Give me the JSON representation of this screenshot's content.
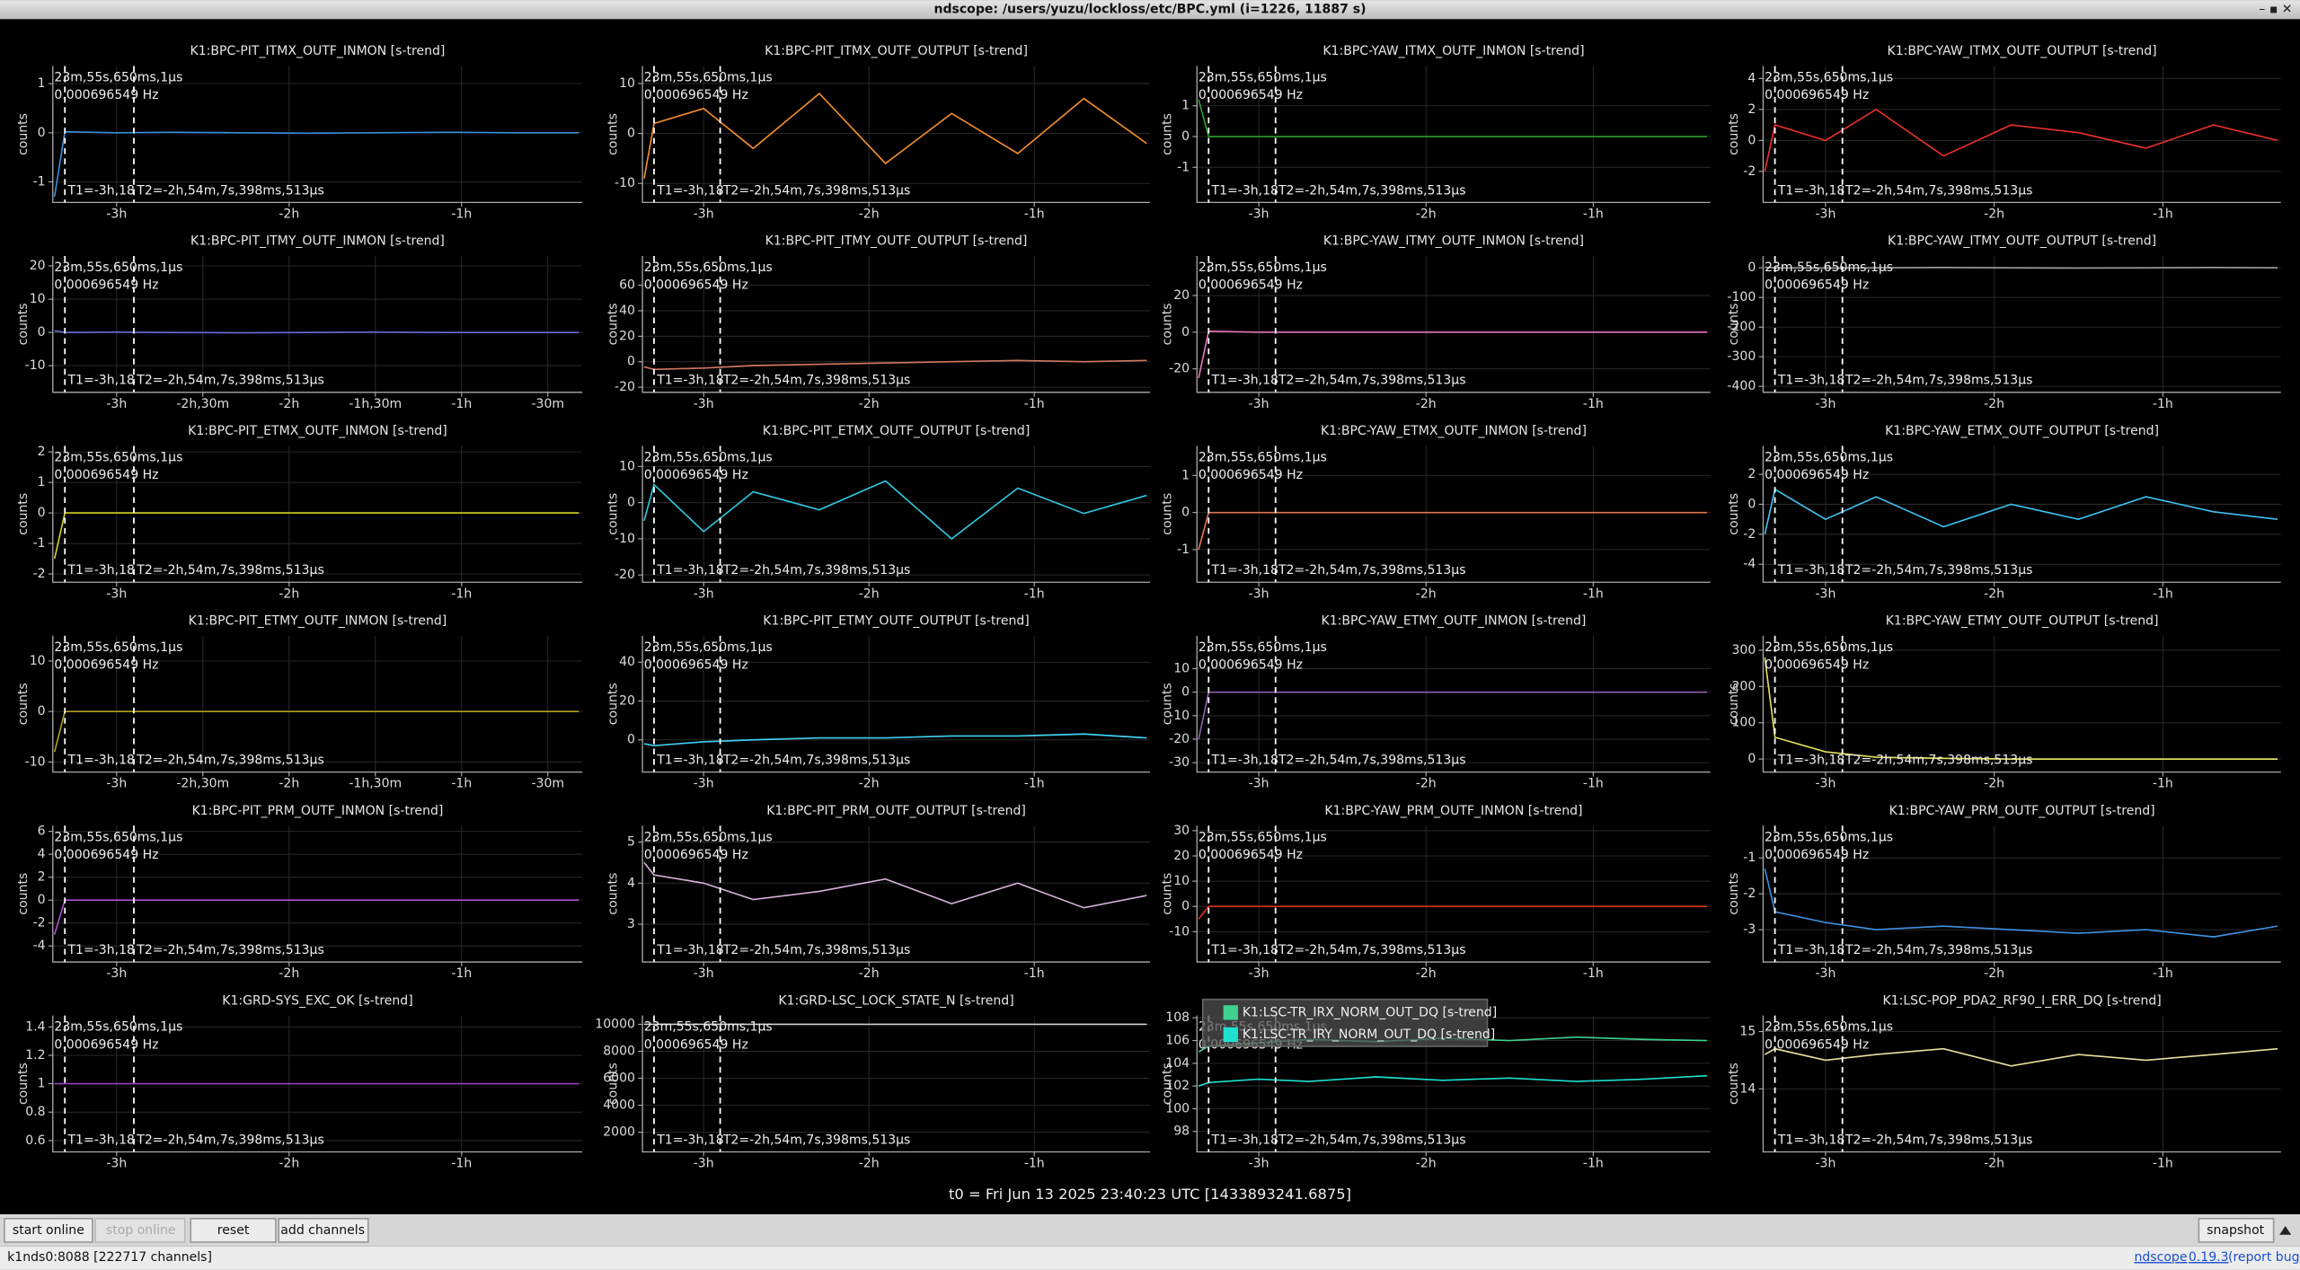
{
  "window": {
    "title": "ndscope: /users/yuzu/lockloss/etc/BPC.yml (i=1226, 11887 s)"
  },
  "xlim": [
    -3.37,
    -0.3
  ],
  "xticks": [
    {
      "value": -3,
      "label": "-3h"
    },
    {
      "value": -2,
      "label": "-2h"
    },
    {
      "value": -1,
      "label": "-1h"
    }
  ],
  "ylabel": "counts",
  "cursors": {
    "t1": -3.3,
    "t2": -2.9,
    "dt_label": "23m,55s,650ms,1µs",
    "freq_label": "0.000696549 Hz",
    "t1_label": "T1=-3h,18",
    "t2_label": "T2=-2h,54m,7s,398ms,513µs"
  },
  "plots": [
    {
      "title": "K1:BPC-PIT_ITMX_OUTF_INMON [s-trend]",
      "ylim": [
        -1.42,
        1.36
      ],
      "yticks": [
        -1,
        0,
        1
      ],
      "x": [
        -3.36,
        -3.3,
        -3.0,
        -2.7,
        -2.3,
        -1.9,
        -1.5,
        -1.1,
        -0.7,
        -0.32
      ],
      "series": [
        {
          "color": "#3c8fd8",
          "values": [
            -1.3,
            0.02,
            0,
            0.01,
            0,
            -0.01,
            0,
            0.01,
            0,
            0
          ]
        }
      ]
    },
    {
      "title": "K1:BPC-PIT_ITMX_OUTF_OUTPUT [s-trend]",
      "ylim": [
        -13.8,
        13.5
      ],
      "yticks": [
        -10,
        0,
        10
      ],
      "x": [
        -3.36,
        -3.3,
        -3.0,
        -2.7,
        -2.3,
        -1.9,
        -1.5,
        -1.1,
        -0.7,
        -0.32
      ],
      "series": [
        {
          "color": "#f28e2b",
          "values": [
            -9,
            2,
            5,
            -3,
            8,
            -6,
            4,
            -4,
            7,
            -2
          ]
        }
      ]
    },
    {
      "title": "K1:BPC-YAW_ITMX_OUTF_INMON [s-trend]",
      "ylim": [
        -2.14,
        2.29
      ],
      "yticks": [
        -1,
        0,
        1
      ],
      "x": [
        -3.36,
        -3.3,
        -3.0,
        -2.7,
        -2.3,
        -1.9,
        -1.5,
        -1.1,
        -0.7,
        -0.32
      ],
      "series": [
        {
          "color": "#2ca02c",
          "values": [
            1.2,
            0,
            0,
            0,
            0,
            0,
            0,
            0,
            0,
            0
          ]
        }
      ]
    },
    {
      "title": "K1:BPC-YAW_ITMX_OUTF_OUTPUT [s-trend]",
      "ylim": [
        -4,
        4.8
      ],
      "yticks": [
        -2,
        0,
        2,
        4
      ],
      "x": [
        -3.36,
        -3.3,
        -3.0,
        -2.7,
        -2.3,
        -1.9,
        -1.5,
        -1.1,
        -0.7,
        -0.32
      ],
      "series": [
        {
          "color": "#e8302a",
          "values": [
            -2,
            1,
            0,
            2,
            -1,
            1,
            0.5,
            -0.5,
            1,
            0
          ]
        }
      ]
    },
    {
      "title": "K1:BPC-PIT_ITMY_OUTF_INMON [s-trend]",
      "ylim": [
        -18,
        23
      ],
      "yticks": [
        -10,
        0,
        10,
        20
      ],
      "xticks": [
        {
          "value": -3,
          "label": "-3h"
        },
        {
          "value": -2.5,
          "label": "-2h,30m"
        },
        {
          "value": -2,
          "label": "-2h"
        },
        {
          "value": -1.5,
          "label": "-1h,30m"
        },
        {
          "value": -1,
          "label": "-1h"
        },
        {
          "value": -0.5,
          "label": "-30m"
        }
      ],
      "x": [
        -3.36,
        -3.3,
        -3.0,
        -2.7,
        -2.3,
        -1.9,
        -1.5,
        -1.1,
        -0.7,
        -0.32
      ],
      "series": [
        {
          "color": "#6c6cd8",
          "values": [
            0.5,
            0,
            0.1,
            0,
            -0.1,
            0,
            0.1,
            0,
            0,
            0
          ]
        }
      ]
    },
    {
      "title": "K1:BPC-PIT_ITMY_OUTF_OUTPUT [s-trend]",
      "ylim": [
        -24,
        83
      ],
      "yticks": [
        -20,
        0,
        20,
        40,
        60
      ],
      "x": [
        -3.36,
        -3.3,
        -3.0,
        -2.7,
        -2.3,
        -1.9,
        -1.5,
        -1.1,
        -0.7,
        -0.32
      ],
      "series": [
        {
          "color": "#d07860",
          "values": [
            -4,
            -6,
            -5,
            -3,
            -2,
            -1,
            0,
            1,
            0,
            1
          ]
        }
      ]
    },
    {
      "title": "K1:BPC-YAW_ITMY_OUTF_INMON [s-trend]",
      "ylim": [
        -32.8,
        41.6
      ],
      "yticks": [
        -20,
        0,
        20
      ],
      "x": [
        -3.36,
        -3.3,
        -3.0,
        -2.7,
        -2.3,
        -1.9,
        -1.5,
        -1.1,
        -0.7,
        -0.32
      ],
      "series": [
        {
          "color": "#e377c2",
          "values": [
            -25,
            0.5,
            0,
            0,
            0,
            0,
            0,
            0,
            0,
            0
          ]
        }
      ]
    },
    {
      "title": "K1:BPC-YAW_ITMY_OUTF_OUTPUT [s-trend]",
      "ylim": [
        -420,
        40
      ],
      "yticks": [
        -400,
        -300,
        -200,
        -100,
        0
      ],
      "x": [
        -3.36,
        -3.3,
        -3.0,
        -2.7,
        -2.3,
        -1.9,
        -1.5,
        -1.1,
        -0.7,
        -0.32
      ],
      "series": [
        {
          "color": "#a0a0a0",
          "values": [
            2,
            0,
            -1,
            0,
            1,
            0,
            -1,
            0,
            1,
            0
          ]
        }
      ]
    },
    {
      "title": "K1:BPC-PIT_ETMX_OUTF_INMON [s-trend]",
      "ylim": [
        -2.27,
        2.2
      ],
      "yticks": [
        -2,
        -1,
        0,
        1,
        2
      ],
      "x": [
        -3.36,
        -3.3,
        -3.0,
        -2.7,
        -2.3,
        -1.9,
        -1.5,
        -1.1,
        -0.7,
        -0.32
      ],
      "series": [
        {
          "color": "#d4d420",
          "values": [
            -1.5,
            0,
            0,
            0,
            0,
            0,
            0,
            0,
            0,
            0
          ]
        }
      ]
    },
    {
      "title": "K1:BPC-PIT_ETMX_OUTF_OUTPUT [s-trend]",
      "ylim": [
        -22,
        15.7
      ],
      "yticks": [
        -20,
        -10,
        0,
        10
      ],
      "x": [
        -3.36,
        -3.3,
        -3.0,
        -2.7,
        -2.3,
        -1.9,
        -1.5,
        -1.1,
        -0.7,
        -0.32
      ],
      "series": [
        {
          "color": "#30c8e0",
          "values": [
            -5,
            5,
            -8,
            3,
            -2,
            6,
            -10,
            4,
            -3,
            2
          ]
        }
      ]
    },
    {
      "title": "K1:BPC-YAW_ETMX_OUTF_INMON [s-trend]",
      "ylim": [
        -1.88,
        1.8
      ],
      "yticks": [
        -1,
        0,
        1
      ],
      "x": [
        -3.36,
        -3.3,
        -3.0,
        -2.7,
        -2.3,
        -1.9,
        -1.5,
        -1.1,
        -0.7,
        -0.32
      ],
      "series": [
        {
          "color": "#e07850",
          "values": [
            -1,
            0,
            0,
            0,
            0,
            0,
            0,
            0,
            0,
            0
          ]
        }
      ]
    },
    {
      "title": "K1:BPC-YAW_ETMX_OUTF_OUTPUT [s-trend]",
      "ylim": [
        -5.2,
        3.9
      ],
      "yticks": [
        -4,
        -2,
        0,
        2
      ],
      "x": [
        -3.36,
        -3.3,
        -3.0,
        -2.7,
        -2.3,
        -1.9,
        -1.5,
        -1.1,
        -0.7,
        -0.32
      ],
      "series": [
        {
          "color": "#40c0f0",
          "values": [
            -2,
            1,
            -1,
            0.5,
            -1.5,
            0,
            -1,
            0.5,
            -0.5,
            -1
          ]
        }
      ]
    },
    {
      "title": "K1:BPC-PIT_ETMY_OUTF_INMON [s-trend]",
      "ylim": [
        -12,
        15
      ],
      "yticks": [
        -10,
        0,
        10
      ],
      "xticks": [
        {
          "value": -3,
          "label": "-3h"
        },
        {
          "value": -2.5,
          "label": "-2h,30m"
        },
        {
          "value": -2,
          "label": "-2h"
        },
        {
          "value": -1.5,
          "label": "-1h,30m"
        },
        {
          "value": -1,
          "label": "-1h"
        },
        {
          "value": -0.5,
          "label": "-30m"
        }
      ],
      "x": [
        -3.36,
        -3.3,
        -3.0,
        -2.7,
        -2.3,
        -1.9,
        -1.5,
        -1.1,
        -0.7,
        -0.32
      ],
      "series": [
        {
          "color": "#b0a020",
          "values": [
            -8,
            0,
            0,
            0,
            0,
            0,
            0,
            0,
            0,
            0
          ]
        }
      ]
    },
    {
      "title": "K1:BPC-PIT_ETMY_OUTF_OUTPUT [s-trend]",
      "ylim": [
        -16.6,
        53.6
      ],
      "yticks": [
        0,
        20,
        40
      ],
      "x": [
        -3.36,
        -3.3,
        -3.0,
        -2.7,
        -2.3,
        -1.9,
        -1.5,
        -1.1,
        -0.7,
        -0.32
      ],
      "series": [
        {
          "color": "#40d0f0",
          "values": [
            -2,
            -3,
            -1,
            0,
            1,
            1,
            2,
            2,
            3,
            1
          ]
        }
      ]
    },
    {
      "title": "K1:BPC-YAW_ETMY_OUTF_INMON [s-trend]",
      "ylim": [
        -34,
        24
      ],
      "yticks": [
        -30,
        -20,
        -10,
        0,
        10
      ],
      "x": [
        -3.36,
        -3.3,
        -3.0,
        -2.7,
        -2.3,
        -1.9,
        -1.5,
        -1.1,
        -0.7,
        -0.32
      ],
      "series": [
        {
          "color": "#9060b0",
          "values": [
            -20,
            0,
            0,
            0,
            0,
            0,
            0,
            0,
            0,
            0
          ]
        }
      ]
    },
    {
      "title": "K1:BPC-YAW_ETMY_OUTF_OUTPUT [s-trend]",
      "ylim": [
        -36,
        340
      ],
      "yticks": [
        0,
        100,
        200,
        300
      ],
      "x": [
        -3.36,
        -3.3,
        -3.0,
        -2.7,
        -2.3,
        -1.9,
        -1.5,
        -1.1,
        -0.7,
        -0.32
      ],
      "series": [
        {
          "color": "#e0e060",
          "values": [
            280,
            60,
            20,
            5,
            2,
            0,
            0,
            0,
            0,
            0
          ]
        }
      ]
    },
    {
      "title": "K1:BPC-PIT_PRM_OUTF_INMON [s-trend]",
      "ylim": [
        -5.4,
        6.5
      ],
      "yticks": [
        -4,
        -2,
        0,
        2,
        4,
        6
      ],
      "x": [
        -3.36,
        -3.3,
        -3.0,
        -2.7,
        -2.3,
        -1.9,
        -1.5,
        -1.1,
        -0.7,
        -0.32
      ],
      "series": [
        {
          "color": "#b050d0",
          "values": [
            -3,
            0,
            0,
            0,
            0,
            0,
            0,
            0,
            0,
            0
          ]
        }
      ]
    },
    {
      "title": "K1:BPC-PIT_PRM_OUTF_OUTPUT [s-trend]",
      "ylim": [
        2.08,
        5.4
      ],
      "yticks": [
        3,
        4,
        5
      ],
      "x": [
        -3.36,
        -3.3,
        -3.0,
        -2.7,
        -2.3,
        -1.9,
        -1.5,
        -1.1,
        -0.7,
        -0.32
      ],
      "series": [
        {
          "color": "#d8b0d8",
          "values": [
            4.5,
            4.2,
            4.0,
            3.6,
            3.8,
            4.1,
            3.5,
            4.0,
            3.4,
            3.7
          ]
        }
      ]
    },
    {
      "title": "K1:BPC-YAW_PRM_OUTF_INMON [s-trend]",
      "ylim": [
        -22,
        32
      ],
      "yticks": [
        -10,
        0,
        10,
        20,
        30
      ],
      "x": [
        -3.36,
        -3.3,
        -3.0,
        -2.7,
        -2.3,
        -1.9,
        -1.5,
        -1.1,
        -0.7,
        -0.32
      ],
      "series": [
        {
          "color": "#e03020",
          "values": [
            -5,
            0,
            0,
            0,
            0,
            0,
            0,
            0,
            0,
            0
          ]
        }
      ]
    },
    {
      "title": "K1:BPC-YAW_PRM_OUTF_OUTPUT [s-trend]",
      "ylim": [
        -3.9,
        -0.1
      ],
      "yticks": [
        -3,
        -2,
        -1
      ],
      "x": [
        -3.36,
        -3.3,
        -3.0,
        -2.7,
        -2.3,
        -1.9,
        -1.5,
        -1.1,
        -0.7,
        -0.32
      ],
      "series": [
        {
          "color": "#4090e0",
          "values": [
            -1.3,
            -2.5,
            -2.8,
            -3.0,
            -2.9,
            -3.0,
            -3.1,
            -3.0,
            -3.2,
            -2.9
          ]
        }
      ]
    },
    {
      "title": "K1:GRD-SYS_EXC_OK [s-trend]",
      "ylim": [
        0.52,
        1.48
      ],
      "yticks": [
        0.6,
        0.8,
        1,
        1.2,
        1.4
      ],
      "x": [
        -3.36,
        -3.3,
        -3.0,
        -2.7,
        -2.3,
        -1.9,
        -1.5,
        -1.1,
        -0.7,
        -0.32
      ],
      "series": [
        {
          "color": "#9040c0",
          "values": [
            1,
            1,
            1,
            1,
            1,
            1,
            1,
            1,
            1,
            1
          ]
        }
      ]
    },
    {
      "title": "K1:GRD-LSC_LOCK_STATE_N [s-trend]",
      "ylim": [
        541,
        10650
      ],
      "yticks": [
        2000,
        4000,
        6000,
        8000,
        10000
      ],
      "x": [
        -3.36,
        -3.3,
        -3.0,
        -2.7,
        -2.3,
        -1.9,
        -1.5,
        -1.1,
        -0.7,
        -0.32
      ],
      "series": [
        {
          "color": "#d0d0d0",
          "values": [
            10000,
            10000,
            10000,
            10000,
            10000,
            10000,
            10000,
            10000,
            10000,
            10000
          ]
        }
      ]
    },
    {
      "ylim": [
        96.2,
        108.2
      ],
      "yticks": [
        98,
        100,
        102,
        104,
        106,
        108
      ],
      "x": [
        -3.36,
        -3.3,
        -3.0,
        -2.7,
        -2.3,
        -1.9,
        -1.5,
        -1.1,
        -0.7,
        -0.32
      ],
      "series": [
        {
          "name": "K1:LSC-TR_IRX_NORM_OUT_DQ [s-trend]",
          "color": "#40d090",
          "values": [
            105,
            105.5,
            105.8,
            106.1,
            105.9,
            106.2,
            106,
            106.3,
            106.1,
            106
          ]
        },
        {
          "name": "K1:LSC-TR_IRY_NORM_OUT_DQ [s-trend]",
          "color": "#20e0d0",
          "values": [
            102,
            102.3,
            102.6,
            102.4,
            102.8,
            102.5,
            102.7,
            102.4,
            102.6,
            102.9
          ]
        }
      ]
    },
    {
      "title": "K1:LSC-POP_PDA2_RF90_I_ERR_DQ [s-trend]",
      "ylim": [
        12.9,
        15.28
      ],
      "yticks": [
        14,
        15
      ],
      "x": [
        -3.36,
        -3.3,
        -3.0,
        -2.7,
        -2.3,
        -1.9,
        -1.5,
        -1.1,
        -0.7,
        -0.32
      ],
      "series": [
        {
          "color": "#e8e0a0",
          "values": [
            14.6,
            14.7,
            14.5,
            14.6,
            14.7,
            14.4,
            14.6,
            14.5,
            14.6,
            14.7
          ]
        }
      ]
    }
  ],
  "t0": "t0 = Fri Jun 13 2025 23:40:23 UTC [1433893241.6875]",
  "buttons": [
    "start online",
    "stop online",
    "reset",
    "add channels",
    "snapshot"
  ],
  "status": "k1nds0:8088 [222717 channels]",
  "links": [
    "ndscope",
    "0.19.3",
    "(report bug)"
  ]
}
